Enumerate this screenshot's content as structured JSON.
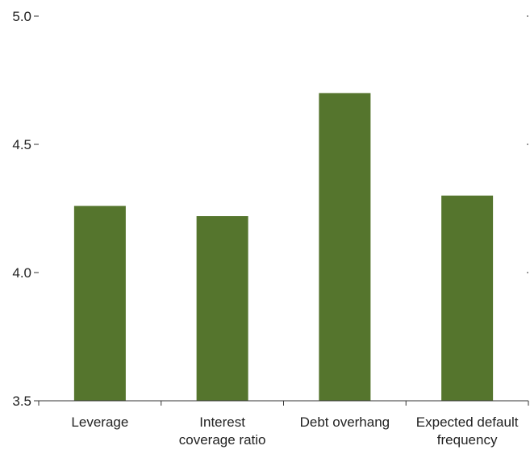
{
  "chart_data": {
    "type": "bar",
    "categories": [
      [
        "Leverage"
      ],
      [
        "Interest",
        "coverage ratio"
      ],
      [
        "Debt overhang"
      ],
      [
        "Expected default",
        "frequency"
      ]
    ],
    "values": [
      4.26,
      4.22,
      4.7,
      4.3
    ],
    "ylim": [
      3.5,
      5.0
    ],
    "yticks": [
      "3.5",
      "4.0",
      "4.5",
      "5.0"
    ],
    "bar_color": "#55752d",
    "grid": false
  }
}
